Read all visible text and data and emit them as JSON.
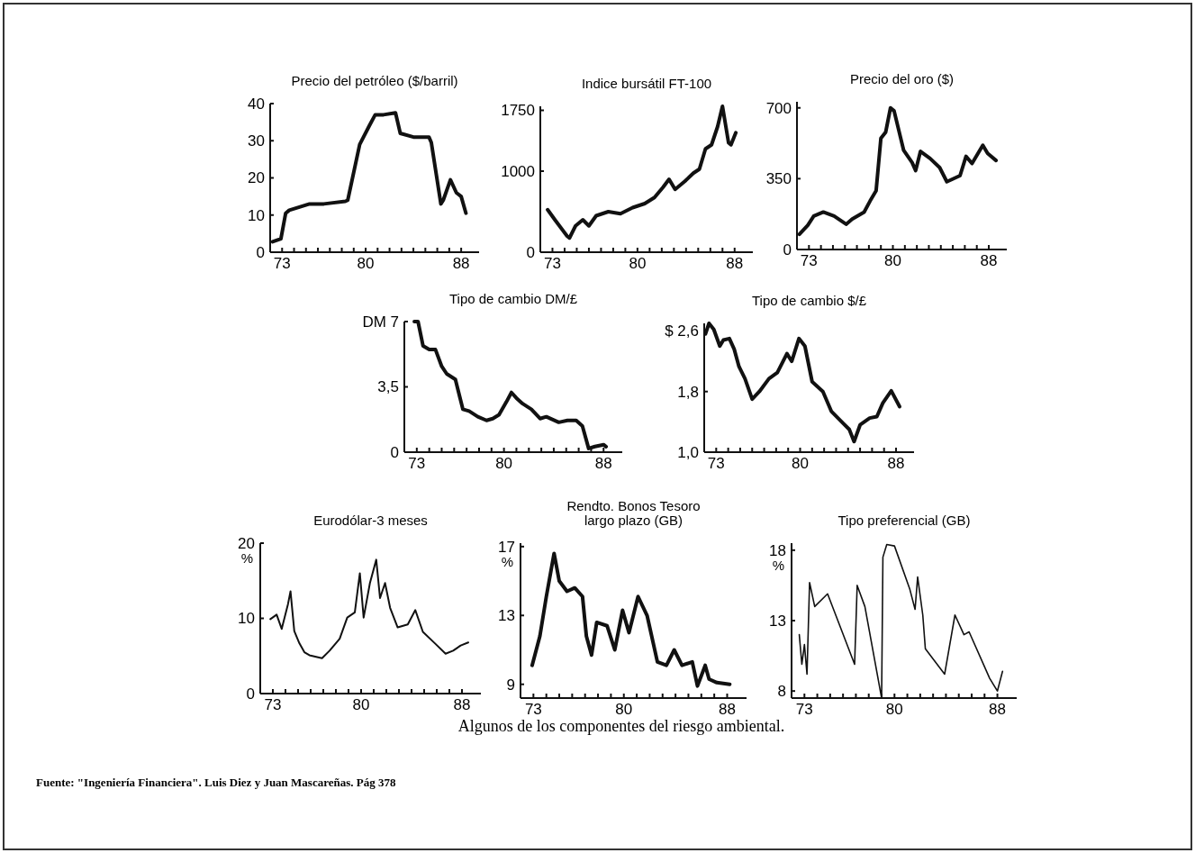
{
  "chart_data": [
    {
      "type": "line",
      "title": "Precio del petróleo ($/barril)",
      "x": [
        72.2,
        72.9,
        73.3,
        73.6,
        75.3,
        76.5,
        78.3,
        78.5,
        79.5,
        80.3,
        80.8,
        81.5,
        82.5,
        82.9,
        84,
        85.3,
        85.5,
        86.3,
        86.5,
        87.1,
        87.6,
        88,
        88.4
      ],
      "series": [
        {
          "color": "#111111",
          "values": [
            2.8,
            3.6,
            10.5,
            11.3,
            13,
            13,
            13.7,
            14,
            29,
            34,
            37,
            37,
            37.5,
            32,
            31,
            31,
            29.5,
            13,
            14,
            19.5,
            16,
            15,
            10.5
          ]
        }
      ],
      "xlim": [
        72,
        89.5
      ],
      "xticks": [
        73,
        {
          "value": 74,
          "label": null
        },
        {
          "value": 75,
          "label": null
        },
        {
          "value": 76,
          "label": null
        },
        {
          "value": 77,
          "label": null
        },
        {
          "value": 78,
          "label": null
        },
        {
          "value": 79,
          "label": null
        },
        80,
        {
          "value": 81,
          "label": null
        },
        {
          "value": 82,
          "label": null
        },
        {
          "value": 83,
          "label": null
        },
        {
          "value": 84,
          "label": null
        },
        {
          "value": 85,
          "label": null
        },
        {
          "value": 86,
          "label": null
        },
        {
          "value": 87,
          "label": null
        },
        88
      ],
      "ylim": [
        0,
        40
      ],
      "yticks": [
        0,
        10,
        20,
        30,
        40
      ]
    },
    {
      "type": "line",
      "title": "Indice bursátil FT-100",
      "x": [
        72.6,
        73.2,
        74.2,
        74.4,
        74.9,
        75.5,
        76,
        76.6,
        77.6,
        78.6,
        79.6,
        80.6,
        81.4,
        82.1,
        82.6,
        83.1,
        83.9,
        84.6,
        85.1,
        85.6,
        86.1,
        86.6,
        87,
        87.5,
        87.7,
        88.1
      ],
      "series": [
        {
          "color": "#111111",
          "values": [
            525,
            400,
            200,
            175,
            325,
            400,
            325,
            450,
            500,
            475,
            550,
            600,
            675,
            800,
            900,
            775,
            875,
            975,
            1025,
            1275,
            1325,
            1550,
            1800,
            1350,
            1325,
            1475
          ]
        }
      ],
      "xlim": [
        72,
        89.5
      ],
      "xticks": [
        73,
        {
          "value": 74,
          "label": null
        },
        {
          "value": 75,
          "label": null
        },
        {
          "value": 76,
          "label": null
        },
        {
          "value": 77,
          "label": null
        },
        {
          "value": 78,
          "label": null
        },
        {
          "value": 79,
          "label": null
        },
        80,
        {
          "value": 81,
          "label": null
        },
        {
          "value": 82,
          "label": null
        },
        {
          "value": 83,
          "label": null
        },
        {
          "value": 84,
          "label": null
        },
        {
          "value": 85,
          "label": null
        },
        {
          "value": 86,
          "label": null
        },
        {
          "value": 87,
          "label": null
        },
        88
      ],
      "ylim": [
        0,
        1800
      ],
      "yticks": [
        0,
        1000,
        1750
      ]
    },
    {
      "type": "line",
      "title": "Precio del oro ($)",
      "x": [
        72.2,
        72.9,
        73.4,
        74.2,
        75.1,
        76.1,
        76.6,
        77.6,
        78.1,
        78.6,
        79,
        79.4,
        79.8,
        80.1,
        80.9,
        81.6,
        81.9,
        82.3,
        83.1,
        83.9,
        84.5,
        85.6,
        86.1,
        86.6,
        87.5,
        87.9,
        88.6
      ],
      "series": [
        {
          "color": "#111111",
          "values": [
            75,
            120,
            165,
            185,
            165,
            125,
            150,
            185,
            240,
            290,
            550,
            580,
            700,
            685,
            490,
            430,
            390,
            485,
            450,
            405,
            335,
            365,
            460,
            425,
            515,
            475,
            440
          ]
        }
      ],
      "xlim": [
        72,
        89.5
      ],
      "xticks": [
        73,
        {
          "value": 74,
          "label": null
        },
        {
          "value": 75,
          "label": null
        },
        {
          "value": 76,
          "label": null
        },
        {
          "value": 77,
          "label": null
        },
        {
          "value": 78,
          "label": null
        },
        {
          "value": 79,
          "label": null
        },
        80,
        {
          "value": 81,
          "label": null
        },
        {
          "value": 82,
          "label": null
        },
        {
          "value": 83,
          "label": null
        },
        {
          "value": 84,
          "label": null
        },
        {
          "value": 85,
          "label": null
        },
        {
          "value": 86,
          "label": null
        },
        {
          "value": 87,
          "label": null
        },
        88
      ],
      "ylim": [
        0,
        730
      ],
      "yticks": [
        0,
        350,
        700
      ]
    },
    {
      "type": "line",
      "title": "Tipo de cambio DM/£",
      "x": [
        72.8,
        73.1,
        73.5,
        74,
        74.5,
        75,
        75.4,
        76.1,
        76.7,
        77.2,
        77.9,
        78.6,
        79.1,
        79.6,
        80.2,
        80.6,
        81,
        81.5,
        82.2,
        82.9,
        83.4,
        84.4,
        85.1,
        85.8,
        86.3,
        86.8,
        87.3,
        88,
        88.2
      ],
      "series": [
        {
          "color": "#111111",
          "values": [
            7,
            7,
            5.7,
            5.5,
            5.5,
            4.6,
            4.2,
            3.9,
            2.3,
            2.2,
            1.9,
            1.7,
            1.8,
            2,
            2.7,
            3.2,
            2.9,
            2.6,
            2.3,
            1.8,
            1.9,
            1.6,
            1.7,
            1.7,
            1.4,
            0.2,
            0.3,
            0.4,
            0.3
          ]
        }
      ],
      "xlim": [
        72,
        89.5
      ],
      "xticks": [
        73,
        {
          "value": 74,
          "label": null
        },
        {
          "value": 75,
          "label": null
        },
        {
          "value": 76,
          "label": null
        },
        {
          "value": 77,
          "label": null
        },
        {
          "value": 78,
          "label": null
        },
        {
          "value": 79,
          "label": null
        },
        80,
        {
          "value": 81,
          "label": null
        },
        {
          "value": 82,
          "label": null
        },
        {
          "value": 83,
          "label": null
        },
        {
          "value": 84,
          "label": null
        },
        {
          "value": 85,
          "label": null
        },
        {
          "value": 86,
          "label": null
        },
        {
          "value": 87,
          "label": null
        },
        88
      ],
      "ylim": [
        0,
        7
      ],
      "yticks": [
        0,
        {
          "value": 3.5,
          "label": "3,5"
        },
        {
          "value": 7,
          "label": "DM 7"
        }
      ]
    },
    {
      "type": "line",
      "title": "Tipo de cambio $/£",
      "x": [
        72.1,
        72.4,
        72.8,
        73.3,
        73.6,
        74.1,
        74.5,
        74.9,
        75.4,
        76,
        76.6,
        77.4,
        78.1,
        78.9,
        79.3,
        79.9,
        80.4,
        81,
        81.9,
        82.6,
        83.6,
        84.1,
        84.5,
        85,
        85.8,
        86.4,
        86.9,
        87.6,
        88.3
      ],
      "series": [
        {
          "color": "#111111",
          "values": [
            2.56,
            2.7,
            2.62,
            2.4,
            2.48,
            2.5,
            2.36,
            2.13,
            1.97,
            1.7,
            1.8,
            1.97,
            2.05,
            2.3,
            2.2,
            2.5,
            2.4,
            1.93,
            1.8,
            1.54,
            1.38,
            1.3,
            1.14,
            1.36,
            1.45,
            1.47,
            1.65,
            1.81,
            1.6
          ]
        }
      ],
      "xlim": [
        72,
        89.5
      ],
      "xticks": [
        73,
        {
          "value": 74,
          "label": null
        },
        {
          "value": 75,
          "label": null
        },
        {
          "value": 76,
          "label": null
        },
        {
          "value": 77,
          "label": null
        },
        {
          "value": 78,
          "label": null
        },
        {
          "value": 79,
          "label": null
        },
        80,
        {
          "value": 81,
          "label": null
        },
        {
          "value": 82,
          "label": null
        },
        {
          "value": 83,
          "label": null
        },
        {
          "value": 84,
          "label": null
        },
        {
          "value": 85,
          "label": null
        },
        {
          "value": 86,
          "label": null
        },
        {
          "value": 87,
          "label": null
        },
        88
      ],
      "ylim": [
        1,
        2.7
      ],
      "yticks": [
        {
          "value": 1,
          "label": "1,0"
        },
        {
          "value": 1.8,
          "label": "1,8"
        },
        {
          "value": 2.6,
          "label": "$ 2,6"
        }
      ]
    },
    {
      "type": "line",
      "title": "Eurodólar-3 meses",
      "ylabel": "%",
      "x": [
        72.8,
        73.3,
        73.7,
        74.2,
        74.4,
        74.7,
        75.1,
        75.5,
        75.9,
        76.9,
        77.5,
        78.3,
        78.9,
        79.5,
        79.9,
        80.2,
        80.7,
        81.2,
        81.5,
        81.9,
        82.3,
        82.9,
        83.7,
        84.3,
        84.9,
        85.9,
        86.7,
        87.3,
        87.9,
        88.5
      ],
      "series": [
        {
          "color": "#111111",
          "values": [
            9.9,
            10.5,
            8.6,
            11.9,
            13.6,
            8.3,
            6.7,
            5.5,
            5.1,
            4.7,
            5.7,
            7.3,
            10.1,
            10.8,
            16,
            10.1,
            14.7,
            17.8,
            12.7,
            14.7,
            11.4,
            8.8,
            9.2,
            11.1,
            8.2,
            6.6,
            5.3,
            5.7,
            6.4,
            6.8
          ]
        }
      ],
      "xlim": [
        72,
        89.5
      ],
      "xticks": [
        73,
        {
          "value": 74,
          "label": null
        },
        {
          "value": 75,
          "label": null
        },
        {
          "value": 76,
          "label": null
        },
        {
          "value": 77,
          "label": null
        },
        {
          "value": 78,
          "label": null
        },
        {
          "value": 79,
          "label": null
        },
        80,
        {
          "value": 81,
          "label": null
        },
        {
          "value": 82,
          "label": null
        },
        {
          "value": 83,
          "label": null
        },
        {
          "value": 84,
          "label": null
        },
        {
          "value": 85,
          "label": null
        },
        {
          "value": 86,
          "label": null
        },
        {
          "value": 87,
          "label": null
        },
        88
      ],
      "ylim": [
        0,
        20
      ],
      "yticks": [
        0,
        10,
        20
      ]
    },
    {
      "type": "line",
      "title": "Rendto. Bonos Tesoro\nlargo plazo (GB)",
      "ylabel": "%",
      "x": [
        72.9,
        73.5,
        74,
        74.6,
        75,
        75.6,
        76.2,
        76.8,
        77.1,
        77.5,
        77.9,
        78.7,
        79.3,
        79.9,
        80.4,
        81.1,
        81.8,
        82.6,
        83.3,
        83.9,
        84.5,
        85.3,
        85.7,
        86.3,
        86.6,
        87.2,
        88.2
      ],
      "series": [
        {
          "color": "#111111",
          "values": [
            10.1,
            11.8,
            14.1,
            16.6,
            15,
            14.4,
            14.6,
            14.1,
            11.8,
            10.7,
            12.6,
            12.4,
            11,
            13.3,
            12,
            14.1,
            13,
            10.3,
            10.1,
            11,
            10.1,
            10.3,
            8.9,
            10.1,
            9.3,
            9.1,
            9
          ]
        }
      ],
      "xlim": [
        72,
        89.5
      ],
      "xticks": [
        73,
        {
          "value": 74,
          "label": null
        },
        {
          "value": 75,
          "label": null
        },
        {
          "value": 76,
          "label": null
        },
        {
          "value": 77,
          "label": null
        },
        {
          "value": 78,
          "label": null
        },
        {
          "value": 79,
          "label": null
        },
        80,
        {
          "value": 81,
          "label": null
        },
        {
          "value": 82,
          "label": null
        },
        {
          "value": 83,
          "label": null
        },
        {
          "value": 84,
          "label": null
        },
        {
          "value": 85,
          "label": null
        },
        {
          "value": 86,
          "label": null
        },
        {
          "value": 87,
          "label": null
        },
        88
      ],
      "ylim": [
        8.2,
        17.2
      ],
      "yticks": [
        9,
        13,
        17
      ]
    },
    {
      "type": "line",
      "title": "Tipo preferencial (GB)",
      "ylabel": "%",
      "x": [
        72.6,
        72.8,
        73,
        73.2,
        73.4,
        73.8,
        74.8,
        76.9,
        77.1,
        77.7,
        79,
        79.1,
        79.4,
        80,
        81.2,
        81.6,
        81.8,
        82.2,
        82.4,
        83.9,
        84.7,
        85.4,
        85.8,
        87.4,
        88,
        88.4
      ],
      "series": [
        {
          "color": "#111111",
          "values": [
            12,
            9.9,
            11.3,
            9.2,
            15.7,
            14,
            14.9,
            9.9,
            15.5,
            14,
            7.5,
            17.5,
            18.4,
            18.3,
            15.2,
            13.8,
            16.1,
            13.4,
            11,
            9.2,
            13.4,
            12,
            12.2,
            8.9,
            8,
            9.4
          ]
        }
      ],
      "xlim": [
        72,
        89.5
      ],
      "xticks": [
        73,
        {
          "value": 74,
          "label": null
        },
        {
          "value": 75,
          "label": null
        },
        {
          "value": 76,
          "label": null
        },
        {
          "value": 77,
          "label": null
        },
        {
          "value": 78,
          "label": null
        },
        {
          "value": 79,
          "label": null
        },
        80,
        {
          "value": 81,
          "label": null
        },
        {
          "value": 82,
          "label": null
        },
        {
          "value": 83,
          "label": null
        },
        {
          "value": 84,
          "label": null
        },
        {
          "value": 85,
          "label": null
        },
        {
          "value": 86,
          "label": null
        },
        {
          "value": 87,
          "label": null
        },
        88
      ],
      "ylim": [
        7.5,
        18.5
      ],
      "yticks": [
        8,
        13,
        18
      ],
      "annotations": [
        "Algunos de los componentes del riesgo ambiental.",
        "Fuente: \"Ingeniería Financiera\". Luis Diez  y Juan Mascareñas. Pág 378"
      ]
    }
  ]
}
